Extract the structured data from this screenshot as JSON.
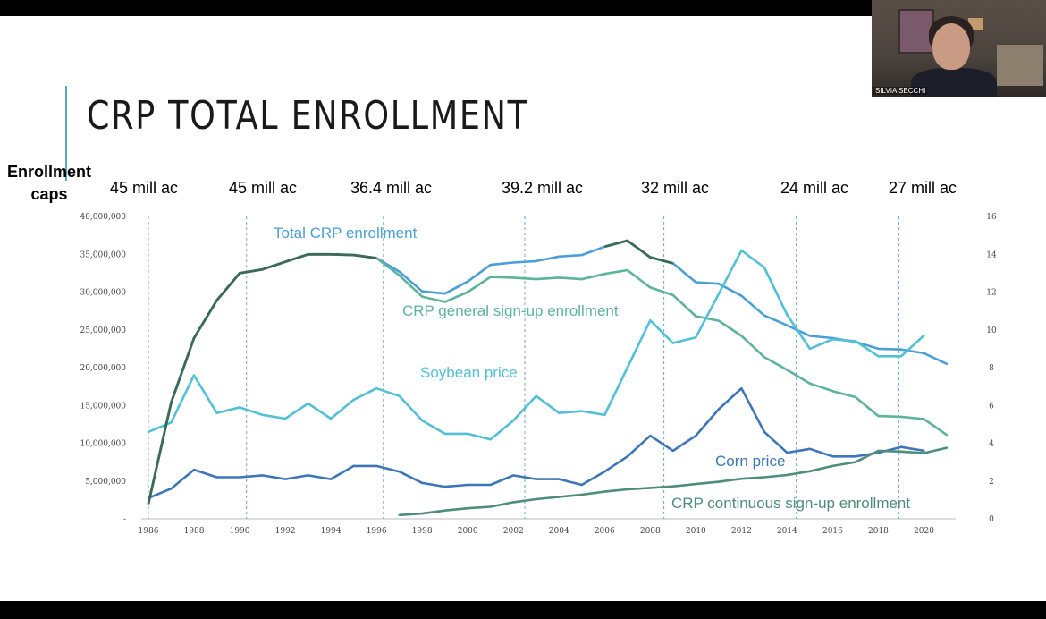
{
  "slide": {
    "title": "CRP TOTAL ENROLLMENT",
    "caps_label_line1": "Enrollment",
    "caps_label_line2": "caps",
    "caps": [
      "45 mill ac",
      "45 mill ac",
      "36.4 mill ac",
      "39.2 mill ac",
      "32 mill ac",
      "24 mill ac",
      "27 mill ac"
    ]
  },
  "webcam": {
    "participant_name": "SILVIA SECCHI"
  },
  "chart_data": {
    "type": "line",
    "title": "",
    "xlabel": "",
    "ylabel": "",
    "x": [
      1986,
      1987,
      1988,
      1989,
      1990,
      1991,
      1992,
      1993,
      1994,
      1995,
      1996,
      1997,
      1998,
      1999,
      2000,
      2001,
      2002,
      2003,
      2004,
      2005,
      2006,
      2007,
      2008,
      2009,
      2010,
      2011,
      2012,
      2013,
      2014,
      2015,
      2016,
      2017,
      2018,
      2019,
      2020,
      2021
    ],
    "xlim": [
      1986,
      2021
    ],
    "ylim_left": [
      0,
      40000000
    ],
    "ylim_right": [
      0,
      16
    ],
    "y_ticks_left": [
      "-",
      "5,000,000",
      "10,000,000",
      "15,000,000",
      "20,000,000",
      "25,000,000",
      "30,000,000",
      "35,000,000",
      "40,000,000"
    ],
    "y_ticks_right": [
      "0",
      "2",
      "4",
      "6",
      "8",
      "10",
      "12",
      "14",
      "16"
    ],
    "x_ticks": [
      "1986",
      "1988",
      "1990",
      "1992",
      "1994",
      "1996",
      "1998",
      "2000",
      "2002",
      "2004",
      "2006",
      "2008",
      "2010",
      "2012",
      "2014",
      "2016",
      "2018",
      "2020"
    ],
    "cap_years": [
      1986,
      1990.3,
      1996.3,
      2002.5,
      2008.6,
      2014.4,
      2018.9
    ],
    "grid": false,
    "legend": "none",
    "series": [
      {
        "name": "Total CRP enrollment",
        "axis": "left",
        "color": "#4a9fd6",
        "x": [
          1986,
          1987,
          1988,
          1989,
          1990,
          1991,
          1992,
          1993,
          1994,
          1995,
          1996,
          1997,
          1998,
          1999,
          2000,
          2001,
          2002,
          2003,
          2004,
          2005,
          2006,
          2007,
          2008,
          2009,
          2010,
          2011,
          2012,
          2013,
          2014,
          2015,
          2016,
          2017,
          2018,
          2019,
          2020,
          2021
        ],
        "values": [
          2000000,
          15400000,
          23900000,
          28900000,
          32500000,
          33000000,
          34000000,
          35000000,
          35000000,
          34900000,
          34500000,
          32700000,
          30100000,
          29800000,
          31400000,
          33600000,
          33900000,
          34100000,
          34700000,
          34900000,
          36000000,
          36800000,
          34600000,
          33800000,
          31300000,
          31100000,
          29500000,
          26900000,
          25600000,
          24200000,
          23900000,
          23400000,
          22500000,
          22400000,
          21900000,
          20500000
        ]
      },
      {
        "name": "CRP general sign-up enrollment",
        "axis": "left",
        "color": "#5db39b",
        "x": [
          1986,
          1987,
          1988,
          1989,
          1990,
          1991,
          1992,
          1993,
          1994,
          1995,
          1996,
          1997,
          1998,
          1999,
          2000,
          2001,
          2002,
          2003,
          2004,
          2005,
          2006,
          2007,
          2008,
          2009,
          2010,
          2011,
          2012,
          2013,
          2014,
          2015,
          2016,
          2017,
          2018,
          2019,
          2020,
          2021
        ],
        "values": [
          2000000,
          15400000,
          23900000,
          28900000,
          32500000,
          33000000,
          34000000,
          35000000,
          35000000,
          34900000,
          34500000,
          32200000,
          29400000,
          28700000,
          30000000,
          32000000,
          31900000,
          31700000,
          31900000,
          31700000,
          32400000,
          32900000,
          30600000,
          29600000,
          26800000,
          26200000,
          24200000,
          21400000,
          19700000,
          17900000,
          16900000,
          16100000,
          13600000,
          13500000,
          13200000,
          11100000
        ]
      },
      {
        "name": "Soybean price",
        "axis": "right",
        "color": "#52c0d6",
        "x": [
          1986,
          1987,
          1988,
          1989,
          1990,
          1991,
          1992,
          1993,
          1994,
          1995,
          1996,
          1997,
          1998,
          1999,
          2000,
          2001,
          2002,
          2003,
          2004,
          2005,
          2006,
          2007,
          2008,
          2009,
          2010,
          2011,
          2012,
          2013,
          2014,
          2015,
          2016,
          2017,
          2018,
          2019,
          2020
        ],
        "values": [
          4.6,
          5.1,
          7.6,
          5.6,
          5.9,
          5.5,
          5.3,
          6.1,
          5.3,
          6.3,
          6.9,
          6.5,
          5.2,
          4.5,
          4.5,
          4.2,
          5.2,
          6.5,
          5.6,
          5.7,
          5.5,
          8.0,
          10.5,
          9.3,
          9.6,
          11.9,
          14.2,
          13.3,
          10.8,
          9.0,
          9.5,
          9.4,
          8.6,
          8.6,
          9.7
        ]
      },
      {
        "name": "Corn price",
        "axis": "right",
        "color": "#3d76b8",
        "x": [
          1986,
          1987,
          1988,
          1989,
          1990,
          1991,
          1992,
          1993,
          1994,
          1995,
          1996,
          1997,
          1998,
          1999,
          2000,
          2001,
          2002,
          2003,
          2004,
          2005,
          2006,
          2007,
          2008,
          2009,
          2010,
          2011,
          2012,
          2013,
          2014,
          2015,
          2016,
          2017,
          2018,
          2019,
          2020
        ],
        "values": [
          1.1,
          1.6,
          2.6,
          2.2,
          2.2,
          2.3,
          2.1,
          2.3,
          2.1,
          2.8,
          2.8,
          2.5,
          1.9,
          1.7,
          1.8,
          1.8,
          2.3,
          2.1,
          2.1,
          1.8,
          2.5,
          3.3,
          4.4,
          3.6,
          4.4,
          5.8,
          6.9,
          4.6,
          3.5,
          3.7,
          3.3,
          3.3,
          3.5,
          3.8,
          3.6
        ]
      },
      {
        "name": "CRP continuous sign-up enrollment",
        "axis": "left",
        "color": "#4e8c7c",
        "x": [
          1997,
          1998,
          1999,
          2000,
          2001,
          2002,
          2003,
          2004,
          2005,
          2006,
          2007,
          2008,
          2009,
          2010,
          2011,
          2012,
          2013,
          2014,
          2015,
          2016,
          2017,
          2018,
          2019,
          2020,
          2021
        ],
        "values": [
          500000,
          700000,
          1100000,
          1400000,
          1600000,
          2200000,
          2600000,
          2900000,
          3200000,
          3600000,
          3900000,
          4100000,
          4300000,
          4600000,
          4900000,
          5300000,
          5500000,
          5800000,
          6300000,
          7000000,
          7500000,
          9000000,
          8900000,
          8700000,
          9400000
        ]
      }
    ],
    "labels": [
      {
        "text": "Total CRP enrollment",
        "color": "#4a9fd6"
      },
      {
        "text": "CRP general sign-up enrollment",
        "color": "#5db39b"
      },
      {
        "text": "Soybean price",
        "color": "#52c0d6"
      },
      {
        "text": "Corn price",
        "color": "#3d76b8"
      },
      {
        "text": "CRP continuous sign-up enrollment",
        "color": "#4e8c7c"
      }
    ]
  }
}
